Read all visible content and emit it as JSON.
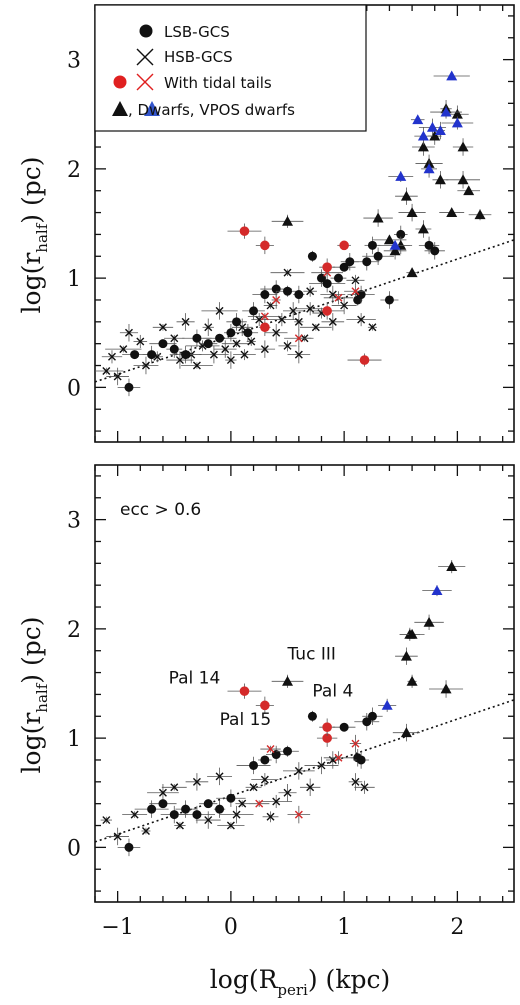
{
  "chart_data": {
    "type": "scatter",
    "xlabel": {
      "main": "log(R",
      "sub": "peri",
      "tail": ") (kpc)"
    },
    "ylabel": {
      "main": "log(r",
      "sub": "half",
      "tail": ") (pc)"
    },
    "xlim": [
      -1.2,
      2.5
    ],
    "ylim": [
      -0.5,
      3.5
    ],
    "xticks": [
      -1,
      0,
      1,
      2
    ],
    "xtick_labels": [
      "−1",
      "0",
      "1",
      "2"
    ],
    "yticks": [
      0,
      1,
      2,
      3
    ],
    "ytick_labels": [
      "0",
      "1",
      "2",
      "3"
    ],
    "legend": {
      "placement": "top-left",
      "items": [
        {
          "label": "LSB-GCS",
          "marker": "circle",
          "color": "#111111"
        },
        {
          "label": "HSB-GCS",
          "marker": "cross",
          "color": "#111111"
        },
        {
          "label": "With tidal tails",
          "marker": "circle+cross",
          "color": "#e02020"
        },
        {
          "label": ", Dwarfs, VPOS dwarfs",
          "marker": "triangle+triangle",
          "color": "#111111",
          "color2": "#3355cc"
        }
      ]
    },
    "colors": {
      "lsb": "#111111",
      "hsb": "#111111",
      "tidal": "#d42a2a",
      "dwarf": "#111111",
      "vpos": "#2233cc"
    },
    "panels": [
      {
        "annotation": "",
        "relation": [
          [
            -1.2,
            0.05
          ],
          [
            2.5,
            1.35
          ]
        ],
        "lsb": [
          [
            -0.9,
            0.0
          ],
          [
            -0.85,
            0.3
          ],
          [
            -0.7,
            0.3
          ],
          [
            -0.6,
            0.4
          ],
          [
            -0.5,
            0.35
          ],
          [
            -0.4,
            0.3
          ],
          [
            -0.3,
            0.45
          ],
          [
            -0.2,
            0.4
          ],
          [
            -0.1,
            0.45
          ],
          [
            0.0,
            0.5
          ],
          [
            0.05,
            0.6
          ],
          [
            0.15,
            0.5
          ],
          [
            0.2,
            0.7
          ],
          [
            0.3,
            0.85
          ],
          [
            0.4,
            0.9
          ],
          [
            0.5,
            0.88
          ],
          [
            0.6,
            0.85
          ],
          [
            0.72,
            1.2
          ],
          [
            0.8,
            1.0
          ],
          [
            0.85,
            0.95
          ],
          [
            0.95,
            1.0
          ],
          [
            1.0,
            1.1
          ],
          [
            1.05,
            1.15
          ],
          [
            1.12,
            0.8
          ],
          [
            1.15,
            0.85
          ],
          [
            1.2,
            1.15
          ],
          [
            1.3,
            1.2
          ],
          [
            1.4,
            0.8
          ],
          [
            1.25,
            1.3
          ],
          [
            1.5,
            1.4
          ],
          [
            1.75,
            1.3
          ],
          [
            1.8,
            1.25
          ]
        ],
        "hsb": [
          [
            -1.1,
            0.15
          ],
          [
            -1.05,
            0.28
          ],
          [
            -1.0,
            0.1
          ],
          [
            -0.95,
            0.35
          ],
          [
            -0.9,
            0.5
          ],
          [
            -0.8,
            0.42
          ],
          [
            -0.75,
            0.2
          ],
          [
            -0.65,
            0.28
          ],
          [
            -0.6,
            0.55
          ],
          [
            -0.5,
            0.45
          ],
          [
            -0.45,
            0.25
          ],
          [
            -0.4,
            0.6
          ],
          [
            -0.35,
            0.3
          ],
          [
            -0.3,
            0.2
          ],
          [
            -0.25,
            0.38
          ],
          [
            -0.2,
            0.55
          ],
          [
            -0.15,
            0.3
          ],
          [
            -0.1,
            0.7
          ],
          [
            -0.05,
            0.35
          ],
          [
            0.0,
            0.25
          ],
          [
            0.05,
            0.4
          ],
          [
            0.1,
            0.55
          ],
          [
            0.12,
            0.3
          ],
          [
            0.18,
            0.42
          ],
          [
            0.25,
            0.62
          ],
          [
            0.3,
            0.35
          ],
          [
            0.35,
            0.75
          ],
          [
            0.4,
            0.5
          ],
          [
            0.45,
            0.62
          ],
          [
            0.5,
            0.38
          ],
          [
            0.55,
            0.7
          ],
          [
            0.6,
            0.6
          ],
          [
            0.65,
            0.45
          ],
          [
            0.7,
            0.72
          ],
          [
            0.75,
            0.55
          ],
          [
            0.8,
            0.68
          ],
          [
            0.9,
            0.85
          ],
          [
            1.0,
            0.75
          ],
          [
            1.1,
            0.98
          ],
          [
            1.15,
            0.62
          ],
          [
            1.25,
            0.55
          ],
          [
            0.5,
            1.05
          ],
          [
            0.7,
            0.88
          ],
          [
            0.9,
            0.6
          ],
          [
            0.6,
            0.3
          ]
        ],
        "tidal_circles": [
          [
            0.12,
            1.43
          ],
          [
            0.3,
            1.3
          ],
          [
            0.85,
            1.1
          ],
          [
            1.0,
            1.3
          ],
          [
            1.18,
            0.25
          ],
          [
            0.85,
            0.7
          ],
          [
            0.3,
            0.55
          ]
        ],
        "tidal_crosses": [
          [
            0.4,
            0.8
          ],
          [
            0.6,
            0.45
          ],
          [
            0.85,
            1.05
          ],
          [
            0.95,
            0.82
          ],
          [
            1.1,
            0.88
          ],
          [
            0.3,
            0.65
          ]
        ],
        "dwarfs": [
          [
            0.5,
            1.52
          ],
          [
            1.3,
            1.55
          ],
          [
            1.4,
            1.35
          ],
          [
            1.45,
            1.25
          ],
          [
            1.6,
            1.05
          ],
          [
            1.55,
            1.75
          ],
          [
            1.6,
            1.6
          ],
          [
            1.7,
            2.2
          ],
          [
            1.75,
            2.05
          ],
          [
            1.8,
            2.3
          ],
          [
            1.85,
            1.9
          ],
          [
            1.9,
            2.55
          ],
          [
            2.0,
            2.5
          ],
          [
            2.05,
            2.2
          ],
          [
            2.05,
            1.9
          ],
          [
            2.1,
            1.8
          ],
          [
            2.2,
            1.58
          ],
          [
            1.7,
            1.45
          ],
          [
            1.5,
            1.3
          ],
          [
            1.95,
            1.6
          ]
        ],
        "vpos": [
          [
            1.45,
            1.3
          ],
          [
            1.5,
            1.93
          ],
          [
            1.65,
            2.45
          ],
          [
            1.7,
            2.3
          ],
          [
            1.78,
            2.38
          ],
          [
            1.85,
            2.35
          ],
          [
            1.9,
            2.52
          ],
          [
            1.95,
            2.85
          ],
          [
            2.0,
            2.42
          ],
          [
            1.75,
            2.0
          ]
        ]
      },
      {
        "annotation": "ecc > 0.6",
        "relation": [
          [
            -1.2,
            0.05
          ],
          [
            2.5,
            1.35
          ]
        ],
        "labels": [
          {
            "text": "Pal 14",
            "x": -0.55,
            "y": 1.5
          },
          {
            "text": "Tuc III",
            "x": 0.5,
            "y": 1.72
          },
          {
            "text": "Pal 4",
            "x": 0.72,
            "y": 1.38
          },
          {
            "text": "Pal 15",
            "x": -0.1,
            "y": 1.12
          }
        ],
        "lsb": [
          [
            -0.9,
            0.0
          ],
          [
            -0.7,
            0.35
          ],
          [
            -0.6,
            0.4
          ],
          [
            -0.5,
            0.3
          ],
          [
            -0.4,
            0.35
          ],
          [
            -0.3,
            0.3
          ],
          [
            -0.2,
            0.4
          ],
          [
            -0.1,
            0.35
          ],
          [
            0.0,
            0.45
          ],
          [
            0.2,
            0.75
          ],
          [
            0.3,
            0.8
          ],
          [
            0.4,
            0.85
          ],
          [
            0.5,
            0.88
          ],
          [
            0.72,
            1.2
          ],
          [
            1.0,
            1.1
          ],
          [
            1.12,
            0.82
          ],
          [
            1.15,
            0.8
          ],
          [
            1.2,
            1.15
          ],
          [
            1.25,
            1.2
          ]
        ],
        "hsb": [
          [
            -1.1,
            0.25
          ],
          [
            -1.0,
            0.1
          ],
          [
            -0.85,
            0.3
          ],
          [
            -0.75,
            0.15
          ],
          [
            -0.6,
            0.5
          ],
          [
            -0.5,
            0.55
          ],
          [
            -0.45,
            0.2
          ],
          [
            -0.3,
            0.6
          ],
          [
            -0.2,
            0.25
          ],
          [
            -0.1,
            0.65
          ],
          [
            0.0,
            0.2
          ],
          [
            0.05,
            0.3
          ],
          [
            0.1,
            0.4
          ],
          [
            0.2,
            0.55
          ],
          [
            0.3,
            0.62
          ],
          [
            0.35,
            0.28
          ],
          [
            0.4,
            0.42
          ],
          [
            0.5,
            0.5
          ],
          [
            0.6,
            0.7
          ],
          [
            0.7,
            0.55
          ],
          [
            0.8,
            0.75
          ],
          [
            0.9,
            0.8
          ],
          [
            1.1,
            0.6
          ],
          [
            1.18,
            0.55
          ]
        ],
        "tidal_circles": [
          [
            0.12,
            1.43
          ],
          [
            0.3,
            1.3
          ],
          [
            0.85,
            1.0
          ],
          [
            0.85,
            1.1
          ]
        ],
        "tidal_crosses": [
          [
            0.35,
            0.9
          ],
          [
            0.6,
            0.3
          ],
          [
            0.95,
            0.82
          ],
          [
            1.1,
            0.95
          ],
          [
            0.25,
            0.4
          ]
        ],
        "dwarfs": [
          [
            0.5,
            1.52
          ],
          [
            1.55,
            1.05
          ],
          [
            1.55,
            1.75
          ],
          [
            1.58,
            1.95
          ],
          [
            1.6,
            1.52
          ],
          [
            1.75,
            2.06
          ],
          [
            1.9,
            1.45
          ],
          [
            1.95,
            2.57
          ],
          [
            1.6,
            1.95
          ]
        ],
        "vpos": [
          [
            1.38,
            1.3
          ],
          [
            1.82,
            2.35
          ]
        ]
      }
    ]
  }
}
